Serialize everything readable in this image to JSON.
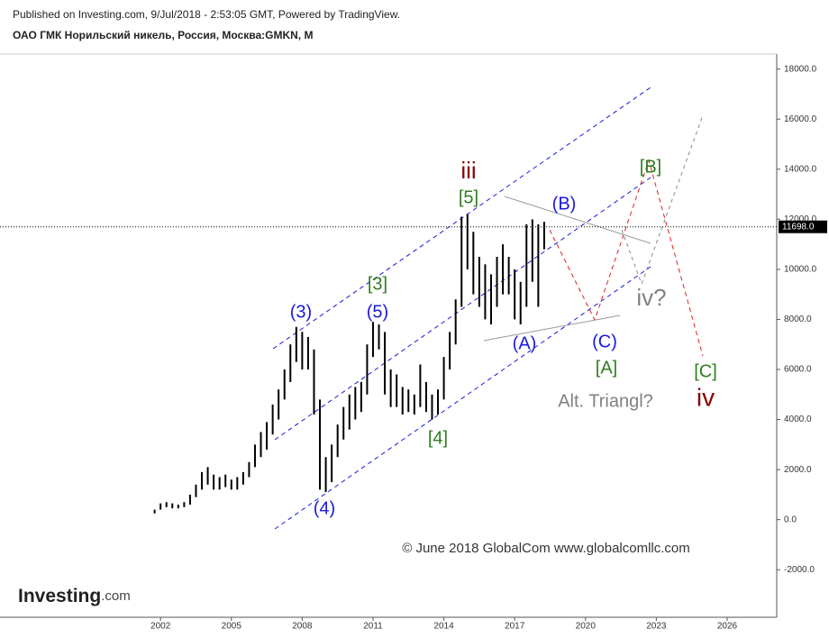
{
  "header": {
    "published": "Published on Investing.com, 9/Jul/2018 - 2:53:05 GMT, Powered by TradingView.",
    "symbol": "ОАО ГМК Норильский никель, Россия, Москва:GMKN, M",
    "logo": "Investing",
    "logo_suffix": ".com"
  },
  "chart_data": {
    "type": "ohlc",
    "color": "#000000",
    "x": [
      2001.75,
      2002.0,
      2002.25,
      2002.5,
      2002.75,
      2003.0,
      2003.25,
      2003.5,
      2003.75,
      2004.0,
      2004.25,
      2004.5,
      2004.75,
      2005.0,
      2005.25,
      2005.5,
      2005.75,
      2006.0,
      2006.25,
      2006.5,
      2006.75,
      2007.0,
      2007.25,
      2007.5,
      2007.75,
      2008.0,
      2008.25,
      2008.5,
      2008.75,
      2009.0,
      2009.25,
      2009.5,
      2009.75,
      2010.0,
      2010.25,
      2010.5,
      2010.75,
      2011.0,
      2011.25,
      2011.5,
      2011.75,
      2012.0,
      2012.25,
      2012.5,
      2012.75,
      2013.0,
      2013.25,
      2013.5,
      2013.75,
      2014.0,
      2014.25,
      2014.5,
      2014.75,
      2015.0,
      2015.25,
      2015.5,
      2015.75,
      2016.0,
      2016.25,
      2016.5,
      2016.75,
      2017.0,
      2017.25,
      2017.5,
      2017.75,
      2018.0,
      2018.25
    ],
    "high": [
      400,
      650,
      700,
      650,
      600,
      700,
      1000,
      1400,
      1900,
      2100,
      1800,
      1700,
      1800,
      1600,
      1700,
      1900,
      2300,
      3000,
      3500,
      3900,
      4600,
      5200,
      6000,
      7000,
      7700,
      7500,
      7300,
      6800,
      4800,
      2500,
      3000,
      3800,
      4500,
      5000,
      5300,
      5500,
      7000,
      7900,
      7800,
      7500,
      6000,
      5800,
      5300,
      5200,
      5000,
      6200,
      5500,
      5000,
      5200,
      6500,
      7500,
      8800,
      12100,
      12200,
      11500,
      10500,
      10200,
      9800,
      10500,
      11000,
      10500,
      10000,
      9500,
      11800,
      12000,
      11800,
      11900
    ],
    "low": [
      250,
      400,
      500,
      450,
      450,
      500,
      600,
      900,
      1200,
      1400,
      1200,
      1200,
      1300,
      1200,
      1200,
      1400,
      1700,
      2100,
      2500,
      2800,
      3400,
      4000,
      4800,
      5500,
      6300,
      6000,
      6000,
      4200,
      1200,
      1100,
      1500,
      2500,
      3200,
      3600,
      4000,
      4300,
      5000,
      6500,
      6800,
      5000,
      4500,
      4500,
      4200,
      4300,
      4200,
      4500,
      4300,
      4000,
      4200,
      4800,
      6000,
      7000,
      8500,
      10000,
      9000,
      8500,
      8000,
      7800,
      8500,
      9000,
      9000,
      8000,
      7800,
      8500,
      9500,
      8500,
      10800
    ],
    "last_price": {
      "value": 11698,
      "label": "11698.0"
    },
    "xlim": [
      1995.2,
      2028.1
    ],
    "ylim": [
      -3900,
      18600
    ],
    "xticks": [
      2002,
      2005,
      2008,
      2011,
      2014,
      2017,
      2020,
      2023,
      2026
    ],
    "yticks": [
      {
        "value": -2000,
        "label": "-2000.0"
      },
      {
        "value": 0,
        "label": "0.0"
      },
      {
        "value": 2000,
        "label": "2000.0"
      },
      {
        "value": 4000,
        "label": "4000.0"
      },
      {
        "value": 6000,
        "label": "6000.0"
      },
      {
        "value": 8000,
        "label": "8000.0"
      },
      {
        "value": 10000,
        "label": "10000.0"
      },
      {
        "value": 12000,
        "label": "12000.0"
      },
      {
        "value": 14000,
        "label": "14000.0"
      },
      {
        "value": 16000,
        "label": "16000.0"
      },
      {
        "value": 18000,
        "label": "18000.0"
      }
    ],
    "grid": false,
    "annotations": [
      {
        "text": "iii",
        "color": "#8b0000"
      },
      {
        "text": "[5]",
        "color": "#2e7d1e"
      },
      {
        "text": "(3)",
        "color": "#1a1adb"
      },
      {
        "text": "(5)",
        "color": "#1a1adb"
      },
      {
        "text": "[3]",
        "color": "#2e7d1e"
      },
      {
        "text": "(4)",
        "color": "#1a1adb"
      },
      {
        "text": "[4]",
        "color": "#2e7d1e"
      },
      {
        "text": "(B)",
        "color": "#1a1adb"
      },
      {
        "text": "(A)",
        "color": "#1a1adb"
      },
      {
        "text": "(C)",
        "color": "#1a1adb"
      },
      {
        "text": "[A]",
        "color": "#2e7d1e"
      },
      {
        "text": "[B]",
        "color": "#2e7d1e"
      },
      {
        "text": "iv?",
        "color": "#808080"
      },
      {
        "text": "Alt. Triangl?",
        "color": "#808080"
      },
      {
        "text": "[C]",
        "color": "#2e7d1e"
      },
      {
        "text": "iv",
        "color": "#8b0000"
      },
      {
        "text": "© June 2018 GlobalCom www.globalcomllc.com",
        "color": "#333333"
      }
    ]
  }
}
